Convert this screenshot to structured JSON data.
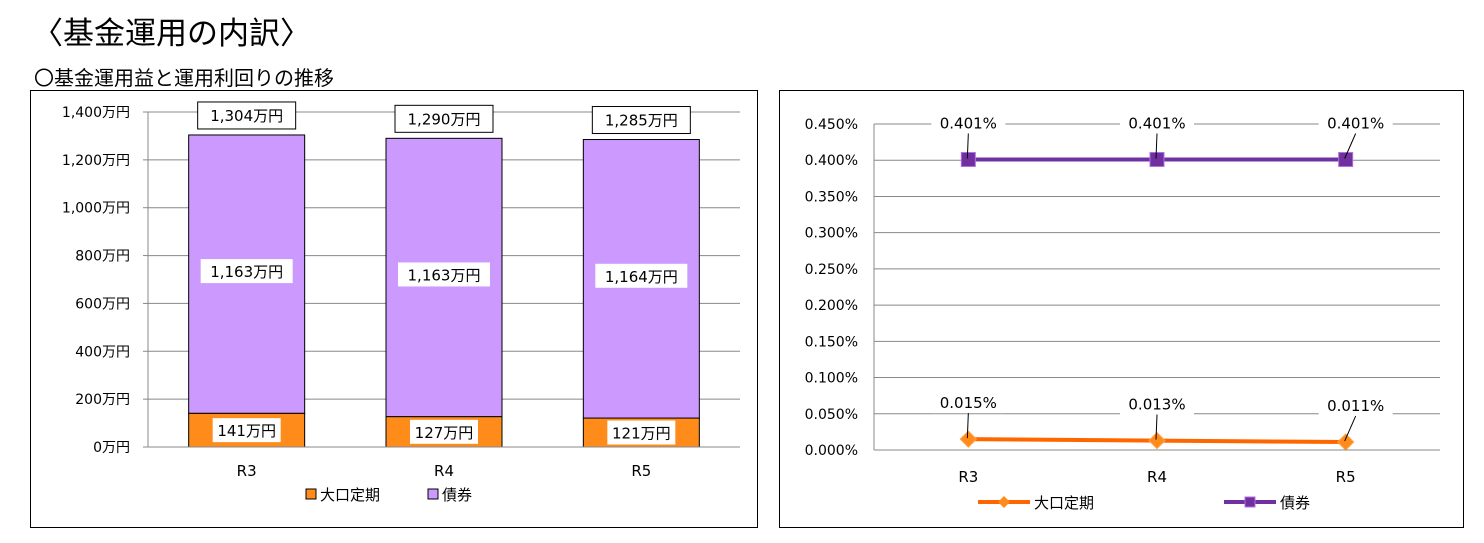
{
  "title": "〈基金運用の内訳〉",
  "subtitle": "〇基金運用益と運用利回りの推移",
  "colors": {
    "teiki": "#FF8C1A",
    "saiken_bar": "#CC99FF",
    "teiki_line": "#FF6600",
    "saiken_line": "#7030A0"
  },
  "chart_data": [
    {
      "type": "bar",
      "stacked": true,
      "categories": [
        "R3",
        "R4",
        "R5"
      ],
      "series": [
        {
          "name": "大口定期",
          "values": [
            141,
            127,
            121
          ],
          "labels": [
            "141万円",
            "127万円",
            "121万円"
          ]
        },
        {
          "name": "債券",
          "values": [
            1163,
            1163,
            1164
          ],
          "labels": [
            "1,163万円",
            "1,163万円",
            "1,164万円"
          ]
        }
      ],
      "totals": [
        1304,
        1290,
        1285
      ],
      "total_labels": [
        "1,304万円",
        "1,290万円",
        "1,285万円"
      ],
      "ylim": [
        0,
        1400
      ],
      "yticks": [
        0,
        200,
        400,
        600,
        800,
        1000,
        1200,
        1400
      ],
      "ytick_labels": [
        "0万円",
        "200万円",
        "400万円",
        "600万円",
        "800万円",
        "1,000万円",
        "1,200万円",
        "1,400万円"
      ],
      "grid": true,
      "legend": "bottom"
    },
    {
      "type": "line",
      "categories": [
        "R3",
        "R4",
        "R5"
      ],
      "series": [
        {
          "name": "大口定期",
          "values": [
            0.015,
            0.013,
            0.011
          ],
          "labels": [
            "0.015%",
            "0.013%",
            "0.011%"
          ],
          "marker": "diamond"
        },
        {
          "name": "債券",
          "values": [
            0.401,
            0.401,
            0.401
          ],
          "labels": [
            "0.401%",
            "0.401%",
            "0.401%"
          ],
          "marker": "square"
        }
      ],
      "ylim": [
        0,
        0.45
      ],
      "yticks": [
        0,
        0.05,
        0.1,
        0.15,
        0.2,
        0.25,
        0.3,
        0.35,
        0.4,
        0.45
      ],
      "ytick_labels": [
        "0.000%",
        "0.050%",
        "0.100%",
        "0.150%",
        "0.200%",
        "0.250%",
        "0.300%",
        "0.350%",
        "0.400%",
        "0.450%"
      ],
      "grid": true,
      "legend": "bottom"
    }
  ]
}
